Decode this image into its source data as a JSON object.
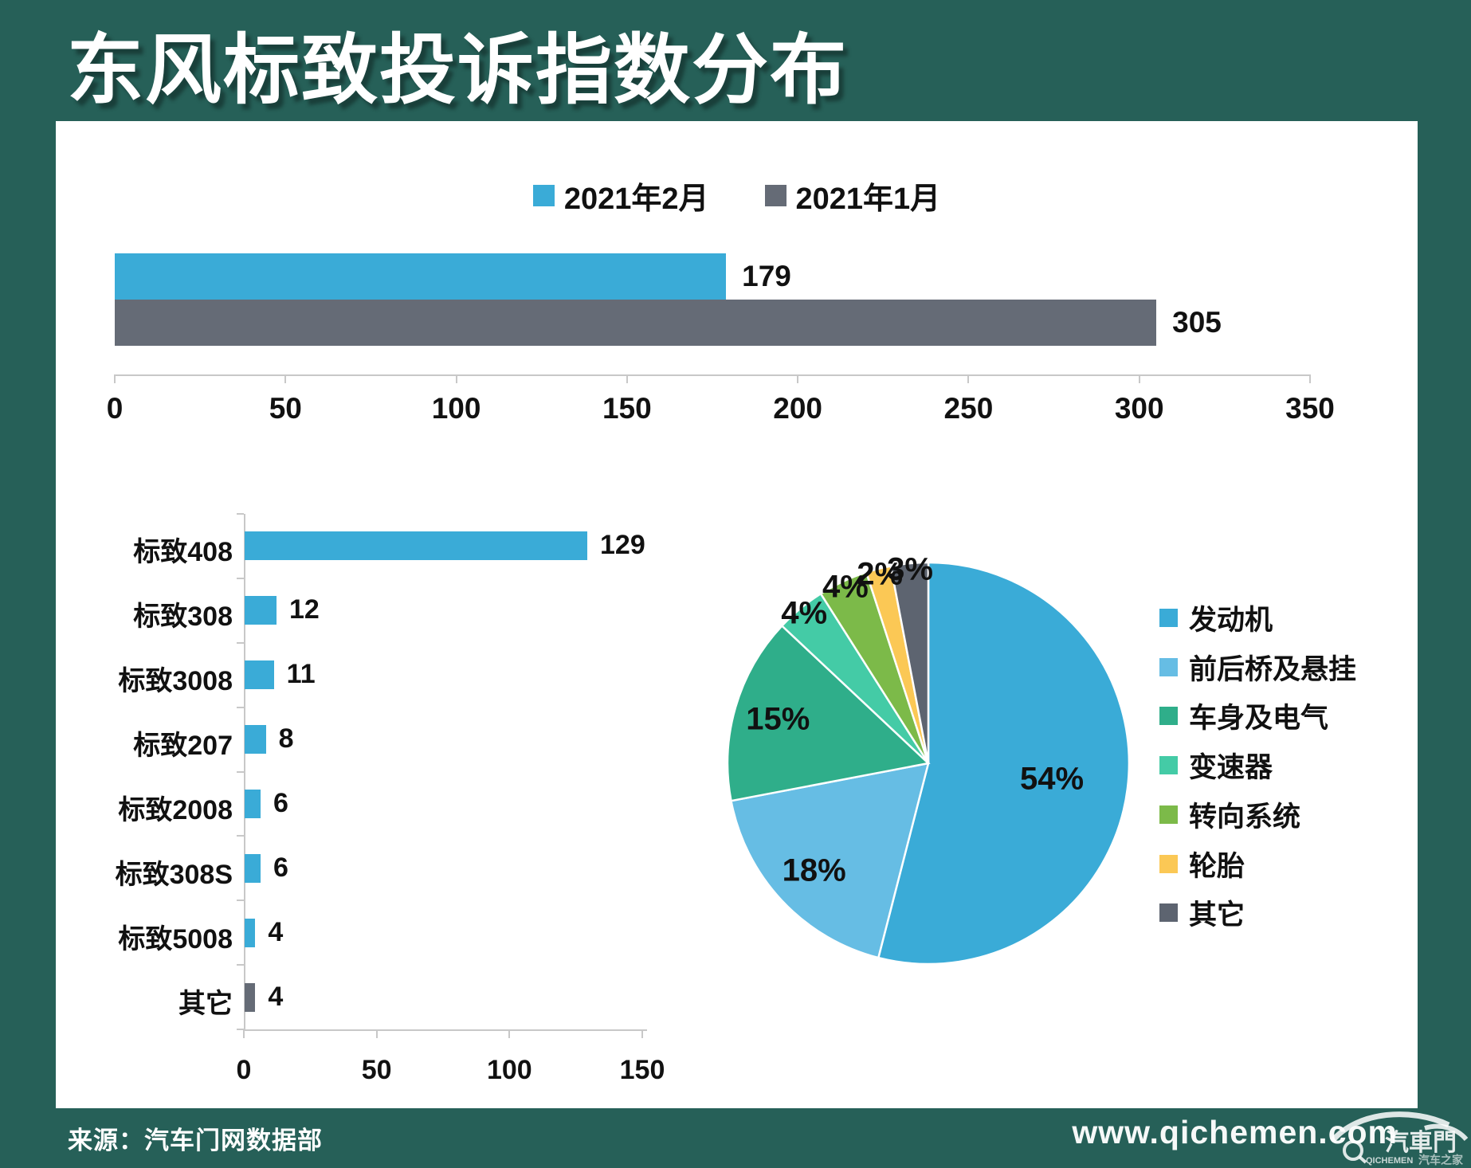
{
  "title": "东风标致投诉指数分布",
  "footer": {
    "source": "来源：汽车门网数据部",
    "website": "www.qichemen.com",
    "logo_text": "汽車門",
    "logo_subtext_left": "QICHEMEN",
    "logo_subtext_right": "汽车之家"
  },
  "colors": {
    "background": "#266058",
    "panel": "#ffffff",
    "axis": "#c8c8c8",
    "text": "#111111",
    "primary_blue": "#3aabd7",
    "dark_gray": "#656b76"
  },
  "chart_data": [
    {
      "type": "bar",
      "orientation": "horizontal",
      "series": [
        {
          "name": "2021年2月",
          "value": 179,
          "color": "#3aabd7"
        },
        {
          "name": "2021年1月",
          "value": 305,
          "color": "#656b76"
        }
      ],
      "xlim": [
        0,
        350
      ],
      "xticks": [
        0,
        50,
        100,
        150,
        200,
        250,
        300,
        350
      ],
      "grid": false,
      "legend_position": "top"
    },
    {
      "type": "bar",
      "orientation": "horizontal",
      "categories": [
        "标致408",
        "标致308",
        "标致3008",
        "标致207",
        "标致2008",
        "标致308S",
        "标致5008",
        "其它"
      ],
      "values": [
        129,
        12,
        11,
        8,
        6,
        6,
        4,
        4
      ],
      "bar_colors": [
        "#3aabd7",
        "#3aabd7",
        "#3aabd7",
        "#3aabd7",
        "#3aabd7",
        "#3aabd7",
        "#3aabd7",
        "#656b76"
      ],
      "xlim": [
        0,
        150
      ],
      "xticks": [
        0,
        50,
        100,
        150
      ],
      "grid": false
    },
    {
      "type": "pie",
      "labels": [
        "发动机",
        "前后桥及悬挂",
        "车身及电气",
        "变速器",
        "转向系统",
        "轮胎",
        "其它"
      ],
      "values": [
        54,
        18,
        15,
        4,
        4,
        2,
        3
      ],
      "colors": [
        "#3aabd7",
        "#66bde4",
        "#2fae8a",
        "#44cba6",
        "#7cba49",
        "#fbc855",
        "#5d6470"
      ],
      "label_format": "percent",
      "start_angle_deg": 0,
      "direction": "clockwise",
      "legend_position": "right",
      "slice_border_color": "#ffffff"
    }
  ]
}
